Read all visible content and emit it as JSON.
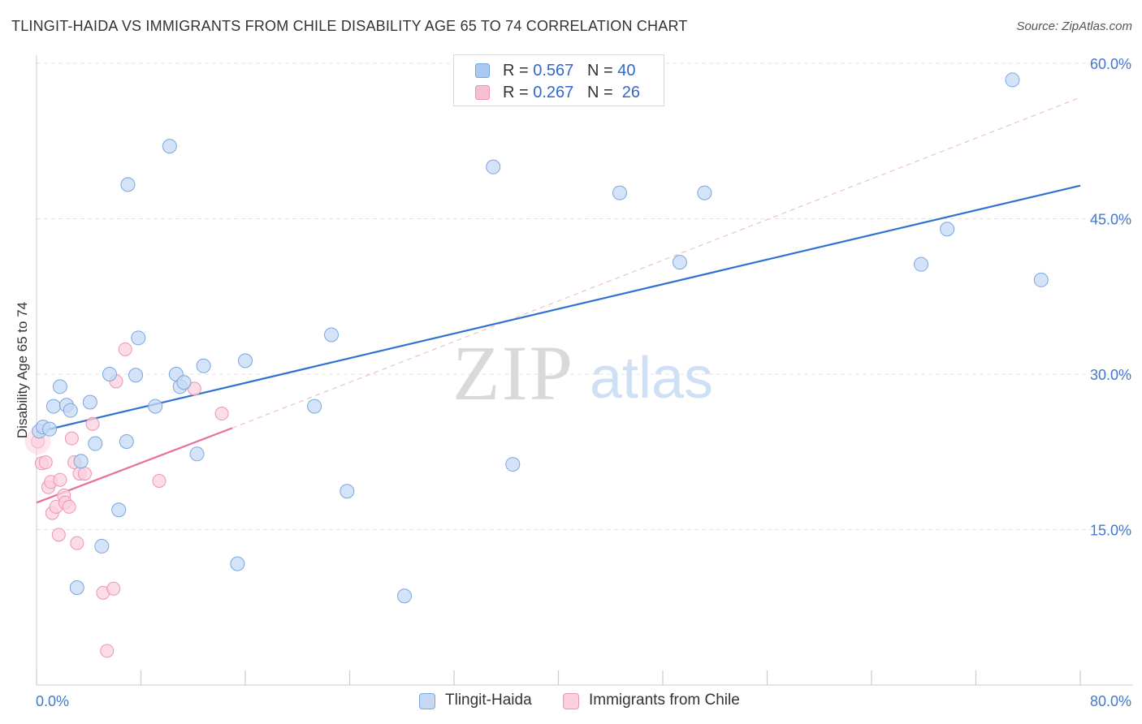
{
  "title": "TLINGIT-HAIDA VS IMMIGRANTS FROM CHILE DISABILITY AGE 65 TO 74 CORRELATION CHART",
  "source": "Source: ZipAtlas.com",
  "watermark": {
    "zip": "ZIP",
    "atlas": "atlas"
  },
  "legend_top": {
    "rows": [
      {
        "r_label": "R = ",
        "r_value": "0.567",
        "n_label": "N = ",
        "n_value": "40",
        "color": "#aac8f0"
      },
      {
        "r_label": "R = ",
        "r_value": "0.267",
        "n_label": "N = ",
        "n_value": "26",
        "color": "#f7bfd0"
      }
    ]
  },
  "colors": {
    "blue_fill": "#c5d9f4",
    "blue_stroke": "#7aa6e0",
    "blue_line": "#2f72d0",
    "pink_fill": "#fbd0dc",
    "pink_stroke": "#ee94b0",
    "pink_line": "#e8709a",
    "tick_label": "#4477cc",
    "grid": "#e3e3e3"
  },
  "chart_data": {
    "type": "scatter",
    "title": "TLINGIT-HAIDA VS IMMIGRANTS FROM CHILE DISABILITY AGE 65 TO 74 CORRELATION CHART",
    "xlabel": "",
    "ylabel": "Disability Age 65 to 74",
    "xlim": [
      0,
      80
    ],
    "ylim": [
      0,
      60
    ],
    "y_ticks": [
      15,
      30,
      45,
      60
    ],
    "y_tick_labels": [
      "15.0%",
      "30.0%",
      "45.0%",
      "60.0%"
    ],
    "x_tick_labels": [
      "0.0%",
      "80.0%"
    ],
    "grid": true,
    "series": [
      {
        "name": "Tlingit-Haida",
        "points": [
          [
            0.2,
            24.5
          ],
          [
            0.5,
            24.9
          ],
          [
            1.0,
            24.7
          ],
          [
            1.3,
            26.9
          ],
          [
            1.8,
            28.8
          ],
          [
            2.3,
            27.0
          ],
          [
            2.6,
            26.5
          ],
          [
            3.1,
            9.4
          ],
          [
            3.4,
            21.6
          ],
          [
            4.1,
            27.3
          ],
          [
            4.5,
            23.3
          ],
          [
            5.0,
            13.4
          ],
          [
            5.6,
            30.0
          ],
          [
            6.3,
            16.9
          ],
          [
            6.9,
            23.5
          ],
          [
            7.0,
            48.3
          ],
          [
            7.6,
            29.9
          ],
          [
            7.8,
            33.5
          ],
          [
            9.1,
            26.9
          ],
          [
            10.2,
            52.0
          ],
          [
            10.7,
            30.0
          ],
          [
            11.0,
            28.8
          ],
          [
            11.3,
            29.2
          ],
          [
            12.3,
            22.3
          ],
          [
            12.8,
            30.8
          ],
          [
            15.4,
            11.7
          ],
          [
            16.0,
            31.3
          ],
          [
            21.3,
            26.9
          ],
          [
            22.6,
            33.8
          ],
          [
            23.8,
            18.7
          ],
          [
            28.2,
            8.6
          ],
          [
            35.0,
            50.0
          ],
          [
            36.5,
            21.3
          ],
          [
            44.7,
            47.5
          ],
          [
            49.3,
            40.8
          ],
          [
            51.2,
            47.5
          ],
          [
            67.8,
            40.6
          ],
          [
            69.8,
            44.0
          ],
          [
            74.8,
            58.4
          ],
          [
            77.0,
            39.1
          ]
        ],
        "trend": {
          "x": [
            0,
            80
          ],
          "y": [
            24.4,
            48.2
          ]
        }
      },
      {
        "name": "Immigrants from Chile",
        "points": [
          [
            0.1,
            23.5
          ],
          [
            0.4,
            21.4
          ],
          [
            0.7,
            21.5
          ],
          [
            0.9,
            19.1
          ],
          [
            1.1,
            19.6
          ],
          [
            1.2,
            16.6
          ],
          [
            1.5,
            17.2
          ],
          [
            1.7,
            14.5
          ],
          [
            1.8,
            19.8
          ],
          [
            2.1,
            18.3
          ],
          [
            2.2,
            17.6
          ],
          [
            2.5,
            17.2
          ],
          [
            2.7,
            23.8
          ],
          [
            2.9,
            21.5
          ],
          [
            3.1,
            13.7
          ],
          [
            3.3,
            20.4
          ],
          [
            3.7,
            20.4
          ],
          [
            4.3,
            25.2
          ],
          [
            5.1,
            8.9
          ],
          [
            5.4,
            3.3
          ],
          [
            5.9,
            9.3
          ],
          [
            6.1,
            29.3
          ],
          [
            6.8,
            32.4
          ],
          [
            9.4,
            19.7
          ],
          [
            12.1,
            28.6
          ],
          [
            14.2,
            26.2
          ]
        ],
        "trend": {
          "x": [
            0,
            15
          ],
          "y": [
            17.6,
            24.8
          ]
        },
        "trend_extension": {
          "x": [
            15,
            80
          ],
          "y": [
            24.8,
            56.7
          ]
        }
      }
    ]
  },
  "legend_bottom": [
    "Tlingit-Haida",
    "Immigrants from Chile"
  ]
}
